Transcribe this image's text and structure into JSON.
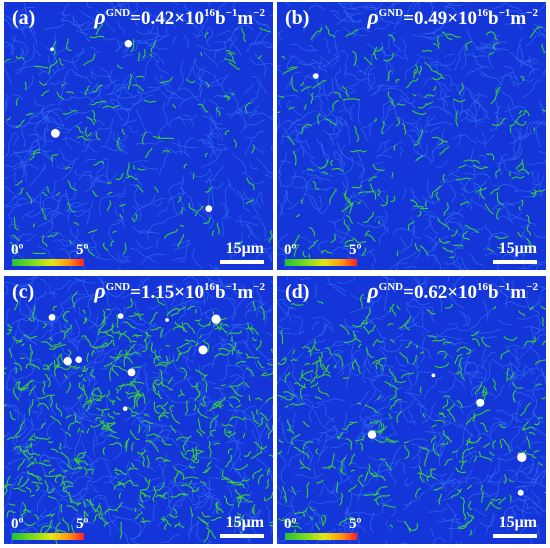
{
  "panels": [
    {
      "label": "(a)",
      "rho": "ρ",
      "gnd_sup": "GND",
      "value": "=0.42×10",
      "exp": "16",
      "unit_b": "b",
      "exp_b": "−1",
      "unit_m": "m",
      "exp_m": "−2",
      "cb_min": "0º",
      "cb_max": "5º",
      "scale": "15μm",
      "density": 0.15,
      "spots": 4
    },
    {
      "label": "(b)",
      "rho": "ρ",
      "gnd_sup": "GND",
      "value": "=0.49×10",
      "exp": "16",
      "unit_b": "b",
      "exp_b": "−1",
      "unit_m": "m",
      "exp_m": "−2",
      "cb_min": "0º",
      "cb_max": "5º",
      "scale": "15μm",
      "density": 0.2,
      "spots": 1
    },
    {
      "label": "(c)",
      "rho": "ρ",
      "gnd_sup": "GND",
      "value": "=1.15×10",
      "exp": "16",
      "unit_b": "b",
      "exp_b": "−1",
      "unit_m": "m",
      "exp_m": "−2",
      "cb_min": "0º",
      "cb_max": "5º",
      "scale": "15μm",
      "density": 0.55,
      "spots": 9
    },
    {
      "label": "(d)",
      "rho": "ρ",
      "gnd_sup": "GND",
      "value": "=0.62×10",
      "exp": "16",
      "unit_b": "b",
      "exp_b": "−1",
      "unit_m": "m",
      "exp_m": "−2",
      "cb_min": "0º",
      "cb_max": "5º",
      "scale": "15μm",
      "density": 0.3,
      "spots": 5
    }
  ],
  "colors": {
    "map_background": "#1436d8",
    "grain_boundary": "#2f66f2",
    "low_angle": "#3ddc2a",
    "high_spot": "#ffffff"
  }
}
